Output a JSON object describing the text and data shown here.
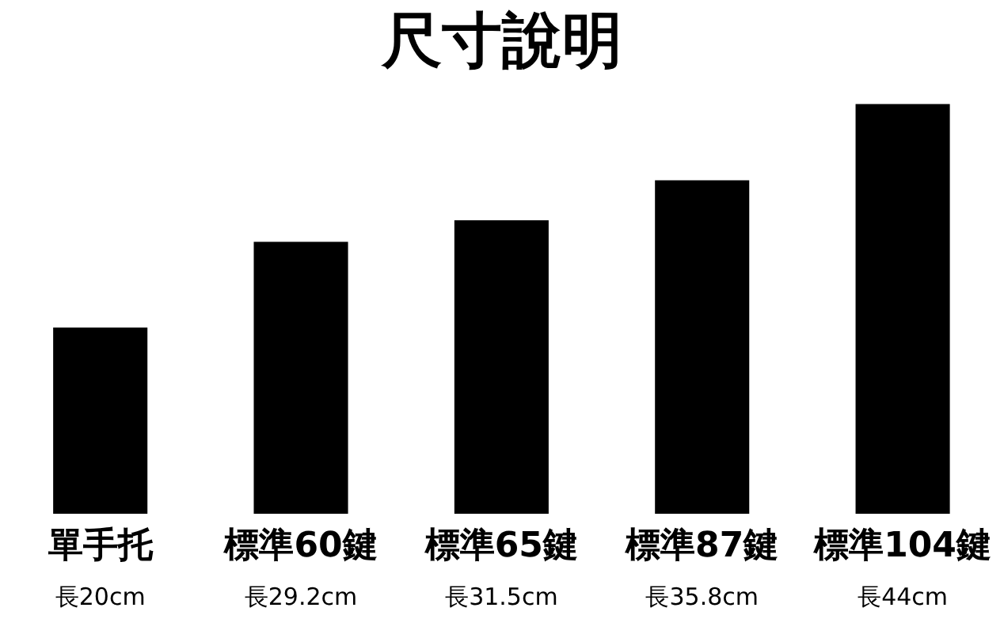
{
  "chart_data": {
    "type": "bar",
    "title": "尺寸說明",
    "categories": [
      "單手托",
      "標準60鍵",
      "標準65鍵",
      "標準87鍵",
      "標準104鍵"
    ],
    "values": [
      20,
      29.2,
      31.5,
      35.8,
      44
    ],
    "value_labels": [
      "長20cm",
      "長29.2cm",
      "長31.5cm",
      "長35.8cm",
      "長44cm"
    ],
    "color": "#000000",
    "grid": false,
    "legend": false
  }
}
